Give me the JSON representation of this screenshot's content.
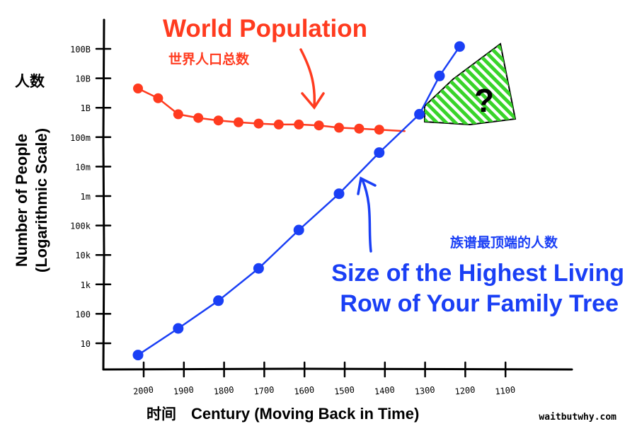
{
  "chart_data": {
    "type": "line",
    "title": "World Population",
    "title_cn": "世界人口总数",
    "xlabel": "Century (Moving Back in Time)",
    "xlabel_cn": "时间",
    "ylabel": "Number of People",
    "ylabel_sub": "(Logarithmic Scale)",
    "ylabel_cn": "人数",
    "x_scale": "reversed",
    "y_scale": "log",
    "x_ticks": [
      "2000",
      "1900",
      "1800",
      "1700",
      "1600",
      "1500",
      "1400",
      "1300",
      "1200",
      "1100"
    ],
    "y_ticks": [
      "10",
      "100",
      "1k",
      "10k",
      "100k",
      "1m",
      "10m",
      "100m",
      "1B",
      "10B",
      "100B"
    ],
    "series": [
      {
        "name": "World Population",
        "color": "#ff3b1f",
        "x": [
          2000,
          1950,
          1900,
          1850,
          1800,
          1750,
          1700,
          1650,
          1600,
          1550,
          1500,
          1450,
          1400
        ],
        "y": [
          4500000000.0,
          2100000000.0,
          600000000.0,
          450000000.0,
          370000000.0,
          320000000.0,
          290000000.0,
          270000000.0,
          270000000.0,
          250000000.0,
          210000000.0,
          195000000.0,
          180000000.0
        ]
      },
      {
        "name": "Size of the Highest Living Row of Your Family Tree",
        "color": "#1a3ff5",
        "x": [
          2000,
          1900,
          1800,
          1700,
          1600,
          1500,
          1400,
          1300,
          1250,
          1200
        ],
        "y": [
          4,
          32,
          280,
          3500,
          70000,
          1200000.0,
          30000000.0,
          600000000.0,
          12000000000.0,
          120000000000.0
        ]
      }
    ],
    "annotations": {
      "family_tree_en_1": "Size of the Highest Living",
      "family_tree_en_2": "Row of Your Family Tree",
      "family_tree_cn": "族谱最顶端的人数",
      "question": "?",
      "credit": "waitbutwhy.com"
    }
  }
}
